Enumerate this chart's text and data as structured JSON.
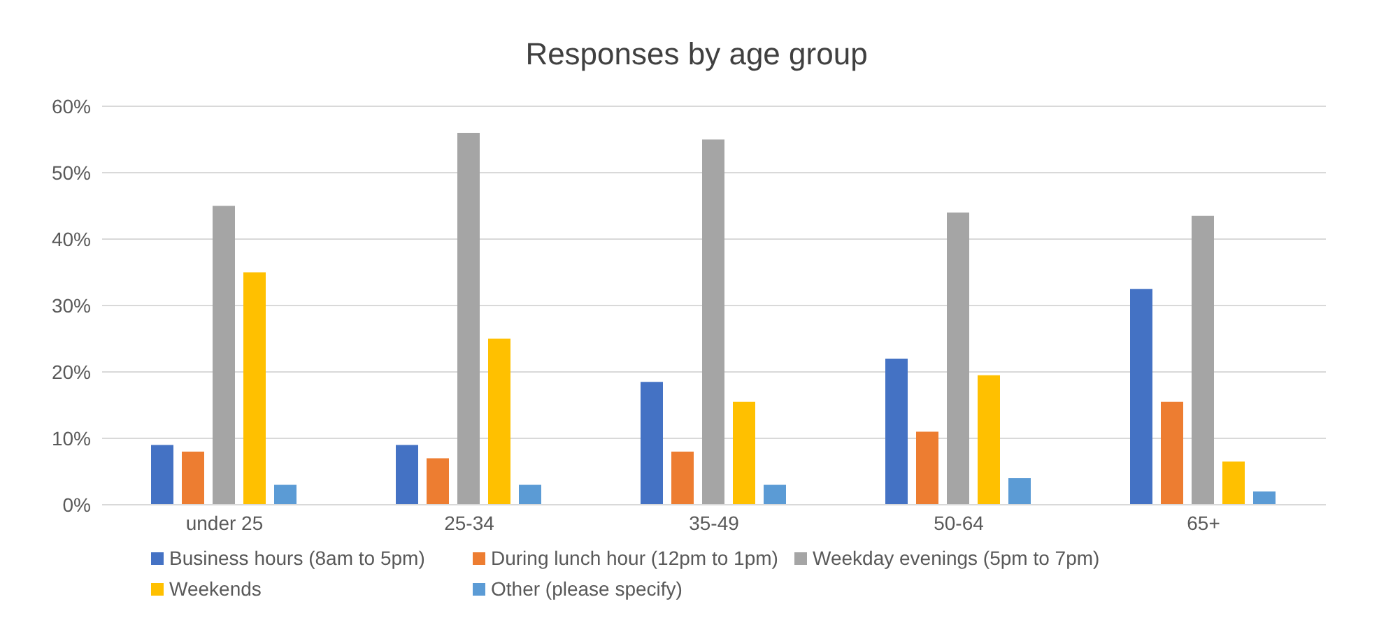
{
  "chart_data": {
    "type": "bar",
    "title": "Responses by age group",
    "categories": [
      "under 25",
      "25-34",
      "35-49",
      "50-64",
      "65+"
    ],
    "series": [
      {
        "name": "Business hours (8am to 5pm)",
        "color": "#4472c4",
        "values": [
          9,
          9,
          18.5,
          22,
          32.5
        ]
      },
      {
        "name": "During lunch hour (12pm to 1pm)",
        "color": "#ed7d31",
        "values": [
          8,
          7,
          8,
          11,
          15.5
        ]
      },
      {
        "name": "Weekday evenings (5pm to 7pm)",
        "color": "#a5a5a5",
        "values": [
          45,
          56,
          55,
          44,
          43.5
        ]
      },
      {
        "name": "Weekends",
        "color": "#ffc000",
        "values": [
          35,
          25,
          15.5,
          19.5,
          6.5
        ]
      },
      {
        "name": "Other (please specify)",
        "color": "#5b9bd5",
        "values": [
          3,
          3,
          3,
          4,
          2
        ]
      }
    ],
    "ylim": [
      0,
      60
    ],
    "yticks": [
      {
        "value": 0,
        "label": "0%"
      },
      {
        "value": 10,
        "label": "10%"
      },
      {
        "value": 20,
        "label": "20%"
      },
      {
        "value": 30,
        "label": "30%"
      },
      {
        "value": 40,
        "label": "40%"
      },
      {
        "value": 50,
        "label": "50%"
      },
      {
        "value": 60,
        "label": "60%"
      }
    ],
    "grid": "y",
    "legend": "bottom"
  }
}
